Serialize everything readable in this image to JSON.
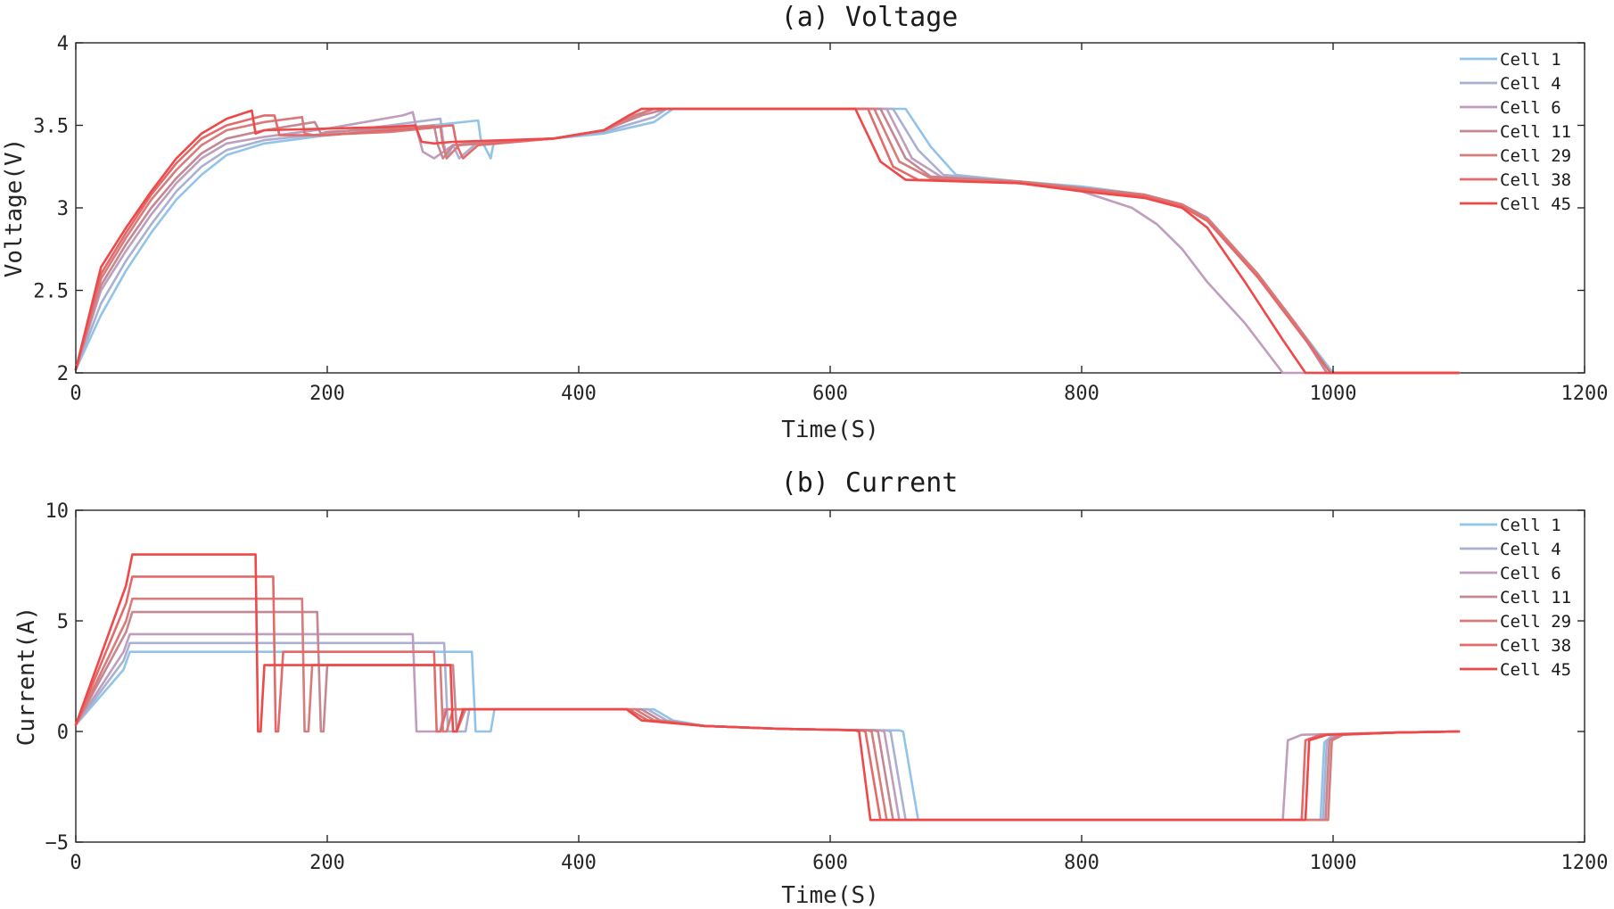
{
  "chart_data": [
    {
      "type": "line",
      "title": "(a) Voltage",
      "xlabel": "Time(S)",
      "ylabel": "Voltage(V)",
      "xlim": [
        0,
        1200
      ],
      "ylim": [
        2,
        4
      ],
      "xticks": [
        0,
        200,
        400,
        600,
        800,
        1000,
        1200
      ],
      "yticks": [
        2,
        2.5,
        3,
        3.5,
        4
      ],
      "ytick_labels": [
        "2",
        "2.5",
        "3",
        "3.5",
        "4"
      ],
      "grid": false,
      "legend_position": "top-right",
      "series": [
        {
          "name": "Cell 1",
          "color": "#92c4e9",
          "x": [
            0,
            20,
            40,
            60,
            80,
            100,
            120,
            150,
            200,
            260,
            320,
            322,
            330,
            332,
            335,
            380,
            420,
            460,
            475,
            660,
            680,
            700,
            750,
            800,
            850,
            880,
            900,
            940,
            970,
            1000,
            1050,
            1100
          ],
          "y": [
            2.02,
            2.35,
            2.62,
            2.85,
            3.05,
            3.2,
            3.32,
            3.39,
            3.44,
            3.48,
            3.53,
            3.42,
            3.3,
            3.38,
            3.4,
            3.42,
            3.45,
            3.52,
            3.6,
            3.6,
            3.37,
            3.2,
            3.16,
            3.13,
            3.08,
            3.02,
            2.93,
            2.58,
            2.3,
            2.0,
            2.0,
            2.0
          ]
        },
        {
          "name": "Cell 4",
          "color": "#aab0d2",
          "x": [
            0,
            20,
            40,
            60,
            80,
            100,
            120,
            150,
            200,
            250,
            290,
            292,
            295,
            300,
            305,
            320,
            380,
            420,
            460,
            470,
            650,
            670,
            690,
            750,
            800,
            850,
            880,
            900,
            940,
            970,
            995,
            1050,
            1100
          ],
          "y": [
            2.02,
            2.42,
            2.68,
            2.9,
            3.1,
            3.25,
            3.35,
            3.41,
            3.45,
            3.5,
            3.54,
            3.42,
            3.3,
            3.38,
            3.3,
            3.4,
            3.42,
            3.46,
            3.55,
            3.6,
            3.6,
            3.35,
            3.2,
            3.16,
            3.12,
            3.07,
            3.0,
            2.93,
            2.6,
            2.3,
            2.0,
            2.0,
            2.0
          ]
        },
        {
          "name": "Cell 6",
          "color": "#bf9ebc",
          "x": [
            0,
            20,
            40,
            60,
            80,
            100,
            120,
            150,
            200,
            260,
            268,
            272,
            276,
            285,
            300,
            320,
            380,
            420,
            440,
            460,
            645,
            665,
            690,
            750,
            800,
            840,
            860,
            880,
            900,
            930,
            960,
            1000,
            1100
          ],
          "y": [
            2.02,
            2.5,
            2.74,
            2.96,
            3.15,
            3.3,
            3.39,
            3.43,
            3.48,
            3.56,
            3.58,
            3.45,
            3.34,
            3.3,
            3.38,
            3.4,
            3.42,
            3.47,
            3.55,
            3.6,
            3.6,
            3.3,
            3.18,
            3.15,
            3.1,
            3.0,
            2.9,
            2.75,
            2.55,
            2.3,
            2.0,
            2.0,
            2.0
          ]
        },
        {
          "name": "Cell 11",
          "color": "#c58792",
          "x": [
            0,
            20,
            40,
            60,
            80,
            100,
            120,
            150,
            190,
            195,
            200,
            250,
            285,
            288,
            292,
            300,
            380,
            420,
            450,
            470,
            640,
            660,
            680,
            750,
            800,
            850,
            880,
            900,
            940,
            970,
            995,
            1100
          ],
          "y": [
            2.02,
            2.53,
            2.78,
            3.0,
            3.18,
            3.33,
            3.42,
            3.47,
            3.52,
            3.45,
            3.46,
            3.48,
            3.5,
            3.38,
            3.3,
            3.38,
            3.42,
            3.47,
            3.56,
            3.6,
            3.6,
            3.3,
            3.19,
            3.16,
            3.12,
            3.08,
            3.02,
            2.94,
            2.6,
            2.3,
            2.0,
            2.0
          ]
        },
        {
          "name": "Cell 29",
          "color": "#d77b7b",
          "x": [
            0,
            20,
            40,
            60,
            80,
            100,
            120,
            150,
            180,
            182,
            190,
            250,
            290,
            292,
            295,
            305,
            380,
            420,
            445,
            460,
            635,
            655,
            680,
            750,
            800,
            850,
            880,
            900,
            940,
            970,
            998,
            1100
          ],
          "y": [
            2.02,
            2.57,
            2.82,
            3.05,
            3.23,
            3.38,
            3.47,
            3.52,
            3.55,
            3.45,
            3.44,
            3.46,
            3.49,
            3.38,
            3.3,
            3.38,
            3.42,
            3.47,
            3.56,
            3.6,
            3.6,
            3.28,
            3.18,
            3.16,
            3.12,
            3.08,
            3.02,
            2.93,
            2.6,
            2.3,
            2.0,
            2.0
          ]
        },
        {
          "name": "Cell 38",
          "color": "#e36a6a",
          "x": [
            0,
            20,
            40,
            60,
            80,
            100,
            120,
            150,
            158,
            162,
            200,
            250,
            300,
            303,
            308,
            320,
            380,
            420,
            440,
            450,
            630,
            650,
            670,
            750,
            800,
            850,
            880,
            900,
            940,
            970,
            998,
            1100
          ],
          "y": [
            2.02,
            2.6,
            2.85,
            3.08,
            3.27,
            3.42,
            3.5,
            3.56,
            3.56,
            3.44,
            3.44,
            3.47,
            3.5,
            3.38,
            3.3,
            3.38,
            3.42,
            3.47,
            3.56,
            3.6,
            3.6,
            3.25,
            3.17,
            3.15,
            3.11,
            3.07,
            3.01,
            2.92,
            2.58,
            2.28,
            2.0,
            2.0
          ]
        },
        {
          "name": "Cell 45",
          "color": "#ef4848",
          "x": [
            0,
            20,
            40,
            60,
            80,
            100,
            120,
            140,
            143,
            150,
            200,
            250,
            270,
            275,
            285,
            300,
            380,
            420,
            440,
            450,
            620,
            640,
            660,
            750,
            800,
            850,
            880,
            900,
            930,
            960,
            978,
            1100
          ],
          "y": [
            2.02,
            2.64,
            2.88,
            3.1,
            3.3,
            3.45,
            3.54,
            3.59,
            3.45,
            3.47,
            3.48,
            3.49,
            3.5,
            3.4,
            3.39,
            3.4,
            3.42,
            3.47,
            3.56,
            3.6,
            3.6,
            3.28,
            3.17,
            3.15,
            3.1,
            3.06,
            3.0,
            2.88,
            2.55,
            2.2,
            2.0,
            2.0
          ]
        }
      ]
    },
    {
      "type": "line",
      "title": "(b) Current",
      "xlabel": "Time(S)",
      "ylabel": "Current(A)",
      "xlim": [
        0,
        1200
      ],
      "ylim": [
        -5,
        10
      ],
      "xticks": [
        0,
        200,
        400,
        600,
        800,
        1000,
        1200
      ],
      "yticks": [
        -5,
        0,
        5,
        10
      ],
      "ytick_labels": [
        "−5",
        "0",
        "5",
        "10"
      ],
      "grid": false,
      "legend_position": "top-right",
      "series": [
        {
          "name": "Cell 1",
          "color": "#92c4e9",
          "x": [
            0,
            38,
            43,
            315,
            318,
            330,
            333,
            335,
            460,
            475,
            500,
            560,
            600,
            655,
            658,
            670,
            673,
            990,
            993,
            1000,
            1050,
            1100
          ],
          "y": [
            0.3,
            2.8,
            3.6,
            3.6,
            0.0,
            0.0,
            1.0,
            1.0,
            1.0,
            0.5,
            0.25,
            0.12,
            0.08,
            0.05,
            0.0,
            -4.0,
            -4.0,
            -4.0,
            -0.5,
            -0.15,
            -0.05,
            0.0
          ]
        },
        {
          "name": "Cell 4",
          "color": "#aab0d2",
          "x": [
            0,
            38,
            43,
            293,
            296,
            310,
            313,
            320,
            455,
            470,
            500,
            560,
            600,
            645,
            648,
            660,
            663,
            992,
            995,
            1002,
            1050,
            1100
          ],
          "y": [
            0.3,
            3.2,
            4.0,
            4.0,
            0.0,
            0.0,
            1.0,
            1.0,
            1.0,
            0.5,
            0.25,
            0.12,
            0.08,
            0.05,
            0.0,
            -4.0,
            -4.0,
            -4.0,
            -0.4,
            -0.15,
            -0.05,
            0.0
          ]
        },
        {
          "name": "Cell 6",
          "color": "#bf9ebc",
          "x": [
            0,
            38,
            43,
            268,
            271,
            290,
            293,
            300,
            440,
            455,
            500,
            560,
            600,
            640,
            643,
            655,
            658,
            960,
            964,
            975,
            1050,
            1100
          ],
          "y": [
            0.3,
            3.6,
            4.4,
            4.4,
            0.0,
            0.0,
            1.0,
            1.0,
            1.0,
            0.5,
            0.25,
            0.12,
            0.08,
            0.05,
            0.0,
            -4.0,
            -4.0,
            -4.0,
            -0.4,
            -0.15,
            -0.05,
            0.0
          ]
        },
        {
          "name": "Cell 11",
          "color": "#c58792",
          "x": [
            0,
            40,
            45,
            192,
            195,
            197,
            200,
            300,
            303,
            310,
            450,
            465,
            500,
            560,
            600,
            635,
            638,
            650,
            653,
            994,
            997,
            1005,
            1050,
            1100
          ],
          "y": [
            0.3,
            4.5,
            5.4,
            5.4,
            0.0,
            0.0,
            3.0,
            3.0,
            0.0,
            1.0,
            1.0,
            0.5,
            0.25,
            0.12,
            0.08,
            0.05,
            0.0,
            -4.0,
            -4.0,
            -4.0,
            -0.4,
            -0.15,
            -0.05,
            0.0
          ]
        },
        {
          "name": "Cell 29",
          "color": "#d77b7b",
          "x": [
            0,
            40,
            45,
            180,
            182,
            185,
            188,
            290,
            292,
            295,
            300,
            445,
            460,
            500,
            560,
            600,
            630,
            633,
            645,
            648,
            996,
            999,
            1008,
            1050,
            1100
          ],
          "y": [
            0.3,
            5.0,
            6.0,
            6.0,
            0.0,
            0.0,
            3.0,
            3.0,
            0.0,
            0.0,
            1.0,
            1.0,
            0.5,
            0.25,
            0.12,
            0.08,
            0.05,
            0.0,
            -4.0,
            -4.0,
            -4.0,
            -0.4,
            -0.15,
            -0.05,
            0.0
          ]
        },
        {
          "name": "Cell 38",
          "color": "#e36a6a",
          "x": [
            0,
            40,
            45,
            157,
            159,
            161,
            165,
            285,
            287,
            290,
            295,
            440,
            455,
            500,
            560,
            600,
            625,
            628,
            640,
            643,
            975,
            978,
            990,
            1050,
            1100
          ],
          "y": [
            0.3,
            5.8,
            7.0,
            7.0,
            0.0,
            0.0,
            3.6,
            3.6,
            0.0,
            0.0,
            1.0,
            1.0,
            0.5,
            0.25,
            0.12,
            0.08,
            0.05,
            0.0,
            -4.0,
            -4.0,
            -4.0,
            -0.4,
            -0.15,
            -0.05,
            0.0
          ]
        },
        {
          "name": "Cell 45",
          "color": "#ef4848",
          "x": [
            0,
            40,
            45,
            143,
            145,
            147,
            150,
            298,
            300,
            303,
            308,
            438,
            450,
            500,
            560,
            600,
            620,
            623,
            632,
            635,
            978,
            981,
            995,
            1050,
            1100
          ],
          "y": [
            0.3,
            6.6,
            8.0,
            8.0,
            0.0,
            0.0,
            3.0,
            3.0,
            0.0,
            0.0,
            1.0,
            1.0,
            0.5,
            0.25,
            0.12,
            0.08,
            0.05,
            0.0,
            -4.0,
            -4.0,
            -4.0,
            -0.4,
            -0.15,
            -0.05,
            0.0
          ]
        }
      ]
    }
  ]
}
